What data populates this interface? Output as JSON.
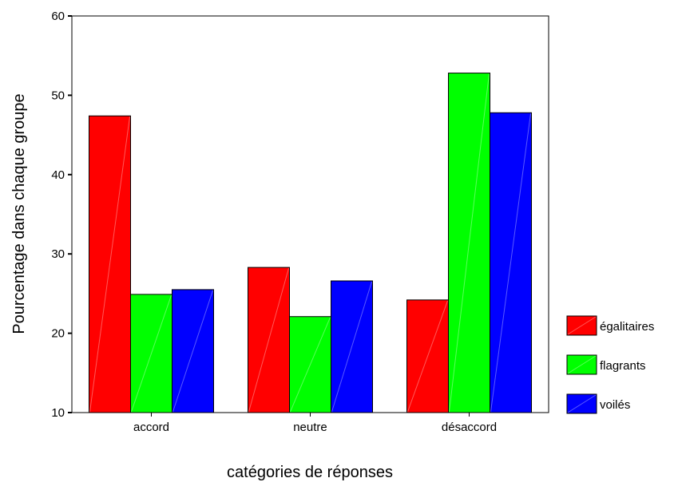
{
  "chart_data": {
    "type": "bar",
    "title": "",
    "xlabel": "catégories de réponses",
    "ylabel": "Pourcentage dans chaque groupe",
    "categories": [
      "accord",
      "neutre",
      "désaccord"
    ],
    "ylim": [
      10,
      60
    ],
    "yticks": [
      "10",
      "20",
      "30",
      "40",
      "50",
      "60"
    ],
    "grid": false,
    "legend_position": "right",
    "series": [
      {
        "name": "égalitaires",
        "color": "#ff0000",
        "values": [
          47.4,
          28.3,
          24.2
        ]
      },
      {
        "name": "flagrants",
        "color": "#00ff00",
        "values": [
          24.9,
          22.1,
          52.8
        ]
      },
      {
        "name": "voilés",
        "color": "#0000ff",
        "values": [
          25.5,
          26.6,
          47.8
        ]
      }
    ]
  }
}
